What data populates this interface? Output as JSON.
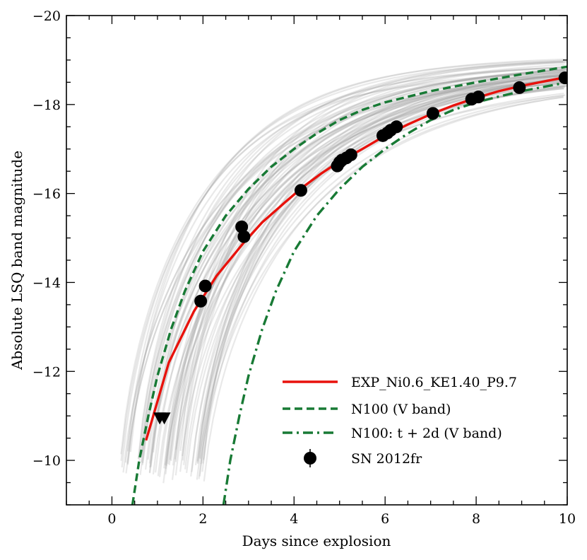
{
  "chart_data": {
    "type": "line",
    "xlabel": "Days since explosion",
    "ylabel": "Absolute LSQ band magnitude",
    "xlim": [
      -1,
      10
    ],
    "ylim": [
      -9,
      -20
    ],
    "x_ticks": [
      0,
      2,
      4,
      6,
      8,
      10
    ],
    "x_tick_labels": [
      "0",
      "2",
      "4",
      "6",
      "8",
      "10"
    ],
    "y_ticks": [
      -10,
      -12,
      -14,
      -16,
      -18,
      -20
    ],
    "y_tick_labels": [
      "−10",
      "−12",
      "−14",
      "−16",
      "−18",
      "−20"
    ],
    "legend_position": "lower-right",
    "colors": {
      "model": "#e8120c",
      "n100": "#187a35",
      "data": "#000000",
      "grid_models": "#9a9a9a"
    },
    "series": [
      {
        "name": "EXP_Ni0.6_KE1.40_P9.7",
        "style": "solid",
        "x": [
          0.75,
          1.25,
          1.8,
          2.3,
          2.9,
          3.3,
          3.8,
          4.2,
          4.6,
          5.0,
          5.5,
          6.0,
          6.5,
          7.0,
          7.5,
          8.0,
          8.5,
          9.0,
          9.5,
          10.0
        ],
        "y": [
          -10.45,
          -12.2,
          -13.35,
          -14.15,
          -14.9,
          -15.35,
          -15.8,
          -16.15,
          -16.45,
          -16.72,
          -17.0,
          -17.3,
          -17.55,
          -17.78,
          -17.98,
          -18.15,
          -18.3,
          -18.42,
          -18.52,
          -18.62
        ]
      },
      {
        "name": "N100 (V band)",
        "style": "dashed",
        "x": [
          0.45,
          0.6,
          0.8,
          1.0,
          1.3,
          1.6,
          2.0,
          2.5,
          3.0,
          3.5,
          4.0,
          4.5,
          5.0,
          5.5,
          6.0,
          7.0,
          8.0,
          9.0,
          10.0
        ],
        "y": [
          -9.0,
          -10.0,
          -11.0,
          -11.9,
          -12.95,
          -13.8,
          -14.7,
          -15.5,
          -16.1,
          -16.6,
          -17.0,
          -17.35,
          -17.65,
          -17.88,
          -18.05,
          -18.3,
          -18.5,
          -18.68,
          -18.85
        ]
      },
      {
        "name": "N100: t + 2d (V band)",
        "style": "dashdot",
        "x": [
          2.45,
          2.6,
          2.8,
          3.0,
          3.3,
          3.6,
          4.0,
          4.5,
          5.0,
          5.5,
          6.0,
          6.5,
          7.0,
          7.5,
          8.0,
          8.5,
          9.0,
          10.0
        ],
        "y": [
          -9.0,
          -10.0,
          -11.0,
          -11.9,
          -12.95,
          -13.8,
          -14.7,
          -15.5,
          -16.1,
          -16.6,
          -17.0,
          -17.35,
          -17.65,
          -17.88,
          -18.05,
          -18.18,
          -18.3,
          -18.5
        ]
      },
      {
        "name": "SN 2012fr",
        "style": "markers",
        "x": [
          1.95,
          2.05,
          2.85,
          2.9,
          4.15,
          4.95,
          5.0,
          5.05,
          5.15,
          5.25,
          5.95,
          6.05,
          6.12,
          6.25,
          7.05,
          7.9,
          8.05,
          8.95,
          9.95
        ],
        "y": [
          -13.58,
          -13.92,
          -15.25,
          -15.03,
          -16.07,
          -16.62,
          -16.7,
          -16.75,
          -16.8,
          -16.87,
          -17.3,
          -17.36,
          -17.42,
          -17.5,
          -17.8,
          -18.12,
          -18.17,
          -18.38,
          -18.6
        ]
      },
      {
        "name": "SN 2012fr upper limits",
        "style": "triangles",
        "x": [
          1.05,
          1.15
        ],
        "y": [
          -10.95,
          -10.95
        ]
      }
    ]
  }
}
